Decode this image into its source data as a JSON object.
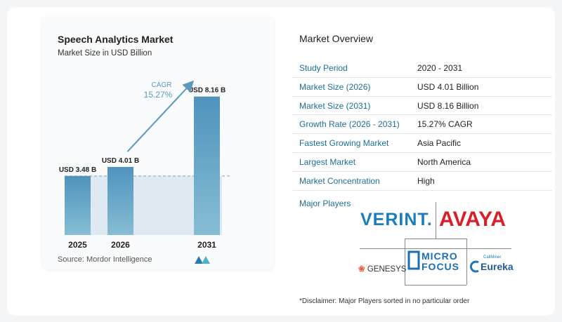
{
  "chart_data": {
    "type": "bar",
    "title": "Speech Analytics Market",
    "subtitle": "Market Size in USD Billion",
    "categories": [
      "2025",
      "2026",
      "2031"
    ],
    "values": [
      3.48,
      4.01,
      8.16
    ],
    "data_labels": [
      "USD 3.48 B",
      "USD 4.01 B",
      "USD 8.16 B"
    ],
    "cagr_label": "CAGR",
    "cagr_value": "15.27%",
    "ylim": [
      0,
      8.6
    ],
    "grid": false,
    "colors": {
      "bar_top": "#4f93bd",
      "bar_bottom": "#87bdd4",
      "band": "#dfe9f1",
      "arrow": "#5a98c0"
    }
  },
  "source": "Source:  Mordor Intelligence",
  "overview": {
    "title": "Market Overview",
    "rows": [
      {
        "key": "Study Period",
        "value": "2020 - 2031"
      },
      {
        "key": "Market Size (2026)",
        "value": "USD 4.01 Billion"
      },
      {
        "key": "Market Size (2031)",
        "value": "USD 8.16 Billion"
      },
      {
        "key": "Growth Rate (2026 - 2031)",
        "value": "15.27% CAGR"
      },
      {
        "key": "Fastest Growing Market",
        "value": "Asia Pacific"
      },
      {
        "key": "Largest Market",
        "value": "North America"
      },
      {
        "key": "Market Concentration",
        "value": "High"
      }
    ]
  },
  "players": {
    "title": "Major Players",
    "verint": "VERINT.",
    "avaya": "AVAYA",
    "genesys": "GENESYS",
    "micro": "MICRO",
    "focus": "FOCUS",
    "eureka_small": "CallMiner",
    "eureka": "Eureka"
  },
  "disclaimer": "*Disclaimer: Major Players sorted in no particular order"
}
